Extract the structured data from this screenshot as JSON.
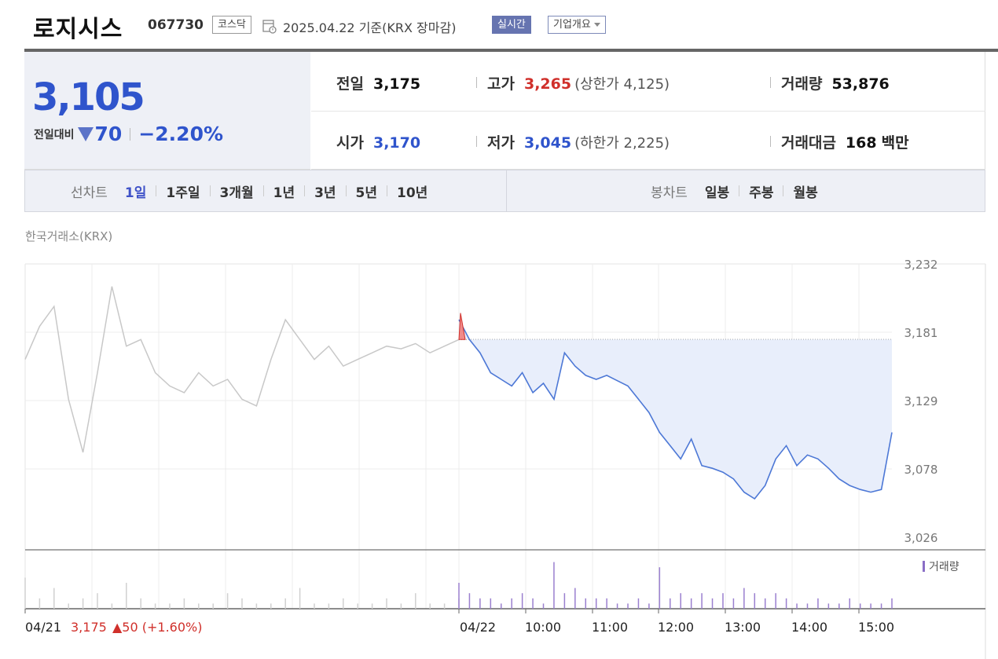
{
  "header": {
    "stock_name": "로지시스",
    "stock_code": "067730",
    "market": "코스닥",
    "date_text": "2025.04.22  기준(KRX 장마감)",
    "realtime_label": "실시간",
    "company_label": "기업개요"
  },
  "price": {
    "current": "3,105",
    "change_label": "전일대비",
    "change_amount": "70",
    "change_percent": "−2.20%"
  },
  "info": {
    "prev_close": {
      "label": "전일",
      "value": "3,175"
    },
    "high": {
      "label": "고가",
      "value": "3,265",
      "sub": "(상한가 4,125)"
    },
    "volume": {
      "label": "거래량",
      "value": "53,876"
    },
    "open": {
      "label": "시가",
      "value": "3,170"
    },
    "low": {
      "label": "저가",
      "value": "3,045",
      "sub": "(하한가 2,225)"
    },
    "trade_value": {
      "label": "거래대금",
      "value": "168",
      "unit": "백만"
    }
  },
  "period": {
    "line_title": "선차트",
    "line_items": [
      "1일",
      "1주일",
      "3개월",
      "1년",
      "3년",
      "5년",
      "10년"
    ],
    "candle_title": "봉차트",
    "candle_items": [
      "일봉",
      "주봉",
      "월봉"
    ]
  },
  "exchange_label": "한국거래소(KRX)",
  "chart_data": {
    "type": "line",
    "ylim": [
      3026,
      3232
    ],
    "y_ticks": [
      "3,232",
      "3,181",
      "3,129",
      "3,078",
      "3,026"
    ],
    "x_ticks": [
      "04/22",
      "10:00",
      "11:00",
      "12:00",
      "13:00",
      "14:00",
      "15:00"
    ],
    "reference_price": 3175,
    "volume_legend": "거래량",
    "prev_day_summary": {
      "date": "04/21",
      "price": "3,175",
      "change": "▲50 (+1.60%)"
    },
    "prev_day_series": [
      3160,
      3185,
      3200,
      3130,
      3090,
      3150,
      3215,
      3170,
      3175,
      3150,
      3140,
      3135,
      3150,
      3140,
      3145,
      3130,
      3125,
      3160,
      3190,
      3175,
      3160,
      3170,
      3155,
      3160,
      3165,
      3170,
      3168,
      3172,
      3165,
      3170,
      3175
    ],
    "today_series": [
      3190,
      3175,
      3165,
      3150,
      3145,
      3140,
      3150,
      3135,
      3142,
      3130,
      3165,
      3155,
      3148,
      3145,
      3148,
      3144,
      3140,
      3130,
      3120,
      3105,
      3095,
      3085,
      3100,
      3080,
      3078,
      3075,
      3070,
      3060,
      3055,
      3065,
      3085,
      3095,
      3080,
      3088,
      3085,
      3078,
      3070,
      3065,
      3062,
      3060,
      3062,
      3105
    ],
    "today_volume": [
      5,
      3,
      2,
      2,
      1,
      2,
      3,
      2,
      1,
      9,
      3,
      4,
      2,
      2,
      2,
      1,
      1,
      2,
      1,
      8,
      2,
      3,
      2,
      3,
      2,
      3,
      2,
      4,
      3,
      2,
      3,
      2,
      1,
      1,
      2,
      1,
      1,
      2,
      1,
      1,
      1,
      2
    ],
    "prev_volume": [
      6,
      2,
      4,
      1,
      2,
      3,
      1,
      5,
      2,
      1,
      1,
      2,
      1,
      1,
      3,
      2,
      1,
      1,
      2,
      4,
      1,
      1,
      2,
      1,
      1,
      2,
      1,
      3,
      1,
      1,
      2
    ]
  }
}
